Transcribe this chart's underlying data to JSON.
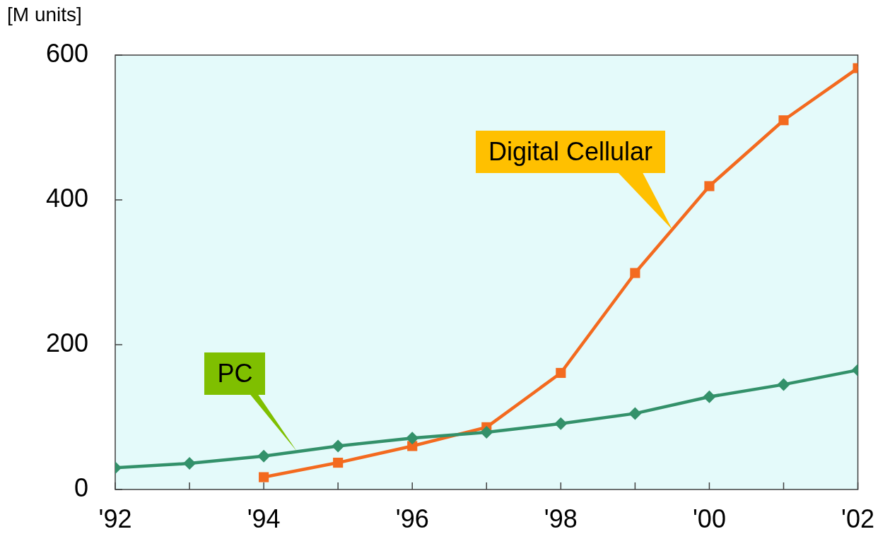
{
  "chart_data": {
    "type": "line",
    "ylabel": "[M units]",
    "x": [
      1992,
      1993,
      1994,
      1995,
      1996,
      1997,
      1998,
      1999,
      2000,
      2001,
      2002
    ],
    "series": [
      {
        "name": "PC",
        "color": "#33916a",
        "marker": "diamond",
        "values": [
          30,
          36,
          46,
          60,
          71,
          79,
          91,
          105,
          128,
          145,
          165
        ]
      },
      {
        "name": "Digital Cellular",
        "color": "#f36a1f",
        "marker": "square",
        "values": [
          null,
          null,
          17,
          37,
          60,
          86,
          161,
          299,
          419,
          510,
          582
        ]
      }
    ],
    "xlim": [
      1992,
      2002
    ],
    "xticks": [
      {
        "value": 1992,
        "label": "'92"
      },
      {
        "value": 1993,
        "label": null
      },
      {
        "value": 1994,
        "label": "'94"
      },
      {
        "value": 1995,
        "label": null
      },
      {
        "value": 1996,
        "label": "'96"
      },
      {
        "value": 1997,
        "label": null
      },
      {
        "value": 1998,
        "label": "'98"
      },
      {
        "value": 1999,
        "label": null
      },
      {
        "value": 2000,
        "label": "'00"
      },
      {
        "value": 2001,
        "label": null
      },
      {
        "value": 2002,
        "label": "'02"
      }
    ],
    "ylim": [
      0,
      600
    ],
    "yticks": [
      0,
      200,
      400,
      600
    ],
    "grid": false,
    "legend": false,
    "line_style": "solid"
  }
}
